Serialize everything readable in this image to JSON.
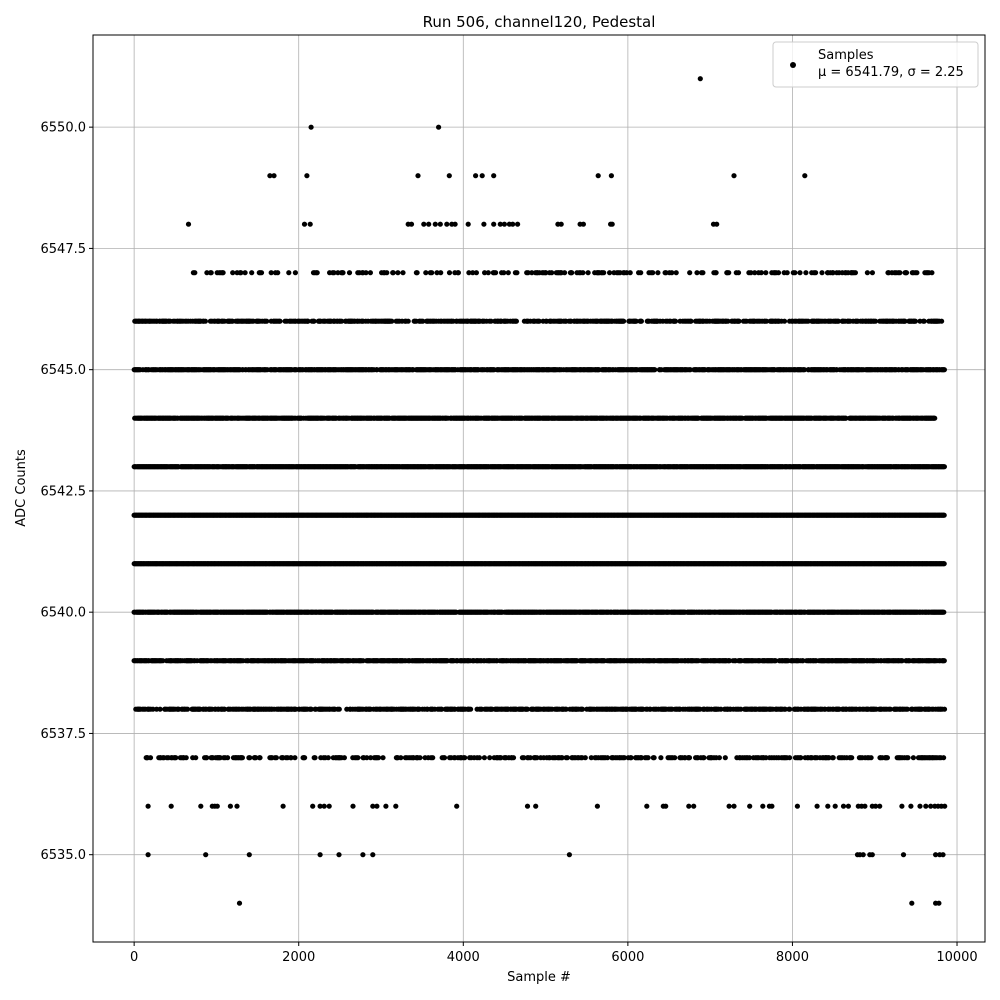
{
  "chart_data": {
    "type": "scatter",
    "title": "Run 506, channel120, Pedestal",
    "xlabel": "Sample #",
    "ylabel": "ADC Counts",
    "xlim": [
      -500,
      10340
    ],
    "ylim": [
      6533.2,
      6551.9
    ],
    "xticks": [
      0,
      2000,
      4000,
      6000,
      8000,
      10000
    ],
    "xtick_labels": [
      "0",
      "2000",
      "4000",
      "6000",
      "8000",
      "10000"
    ],
    "yticks": [
      6535.0,
      6537.5,
      6540.0,
      6542.5,
      6545.0,
      6547.5,
      6550.0
    ],
    "ytick_labels": [
      "6535.0",
      "6537.5",
      "6540.0",
      "6542.5",
      "6545.0",
      "6547.5",
      "6550.0"
    ],
    "grid": true,
    "legend_position": "top-right",
    "series": [
      {
        "name": "Samples",
        "legend_label_line1": "Samples",
        "legend_label_line2": "μ = 6541.79, σ = 2.25",
        "mean": 6541.79,
        "sigma": 2.25,
        "n_samples": 9850,
        "color": "#000000",
        "points": [
          [
            6880,
            6551
          ],
          [
            2150,
            6550
          ],
          [
            3700,
            6550
          ],
          [
            1650,
            6549
          ],
          [
            1700,
            6549
          ],
          [
            2100,
            6549
          ],
          [
            3450,
            6549
          ],
          [
            3830,
            6549
          ],
          [
            4150,
            6549
          ],
          [
            4230,
            6549
          ],
          [
            4370,
            6549
          ],
          [
            5640,
            6549
          ],
          [
            5800,
            6549
          ],
          [
            7290,
            6549
          ],
          [
            8150,
            6549
          ],
          [
            660,
            6548
          ],
          [
            2070,
            6548
          ],
          [
            2140,
            6548
          ],
          [
            3330,
            6548
          ],
          [
            3370,
            6548
          ],
          [
            3520,
            6548
          ],
          [
            3580,
            6548
          ],
          [
            3660,
            6548
          ],
          [
            3720,
            6548
          ],
          [
            3800,
            6548
          ],
          [
            3860,
            6548
          ],
          [
            3900,
            6548
          ],
          [
            4060,
            6548
          ],
          [
            4250,
            6548
          ],
          [
            4370,
            6548
          ],
          [
            4450,
            6548
          ],
          [
            4500,
            6548
          ],
          [
            4560,
            6548
          ],
          [
            4600,
            6548
          ],
          [
            4660,
            6548
          ],
          [
            5150,
            6548
          ],
          [
            5190,
            6548
          ],
          [
            5420,
            6548
          ],
          [
            5460,
            6548
          ],
          [
            5790,
            6548
          ],
          [
            5810,
            6548
          ],
          [
            7040,
            6548
          ],
          [
            7080,
            6548
          ],
          [
            1280,
            6534
          ],
          [
            9450,
            6534
          ],
          [
            9740,
            6534
          ],
          [
            9780,
            6534
          ]
        ],
        "bands": [
          {
            "y": 6535,
            "xs": [
              170,
              870,
              1400,
              2260,
              2490,
              2780,
              2900,
              5290,
              8790,
              8820,
              8860,
              8940,
              8970,
              9350,
              9740,
              9790,
              9830
            ]
          },
          {
            "y": 6536,
            "xs": [
              170,
              450,
              810,
              950,
              980,
              1010,
              1170,
              1250,
              1810,
              2170,
              2260,
              2310,
              2370,
              2660,
              2900,
              2950,
              3060,
              3180,
              3920,
              4780,
              4880,
              5630,
              6230,
              6430,
              6460,
              6740,
              6800,
              7230,
              7290,
              7480,
              7640,
              7720,
              7750,
              8060,
              8300,
              8430,
              8520,
              8620,
              8680,
              8800,
              8840,
              8880,
              8970,
              9010,
              9060,
              9330,
              9440,
              9550,
              9620,
              9680,
              9730,
              9770,
              9810,
              9850
            ]
          },
          {
            "y": 6539,
            "from": 0,
            "to": 9850,
            "density": 0.7
          },
          {
            "y": 6540,
            "from": 0,
            "to": 9850,
            "density": 0.9
          },
          {
            "y": 6541,
            "from": 0,
            "to": 9850,
            "density": 1.0
          },
          {
            "y": 6542,
            "from": 0,
            "to": 9850,
            "density": 1.0
          },
          {
            "y": 6543,
            "from": 0,
            "to": 9850,
            "density": 0.95
          },
          {
            "y": 6544,
            "from": 0,
            "to": 9730,
            "density": 0.85
          },
          {
            "y": 6545,
            "from": 0,
            "to": 9850,
            "density": 0.75
          },
          {
            "y": 6537,
            "from": 100,
            "to": 9850,
            "density": 0.3
          },
          {
            "y": 6538,
            "from": 20,
            "to": 9850,
            "density": 0.55
          },
          {
            "y": 6546,
            "from": 0,
            "to": 9850,
            "density": 0.5
          },
          {
            "y": 6547,
            "from": 720,
            "to": 9700,
            "density": 0.22
          }
        ]
      }
    ]
  }
}
